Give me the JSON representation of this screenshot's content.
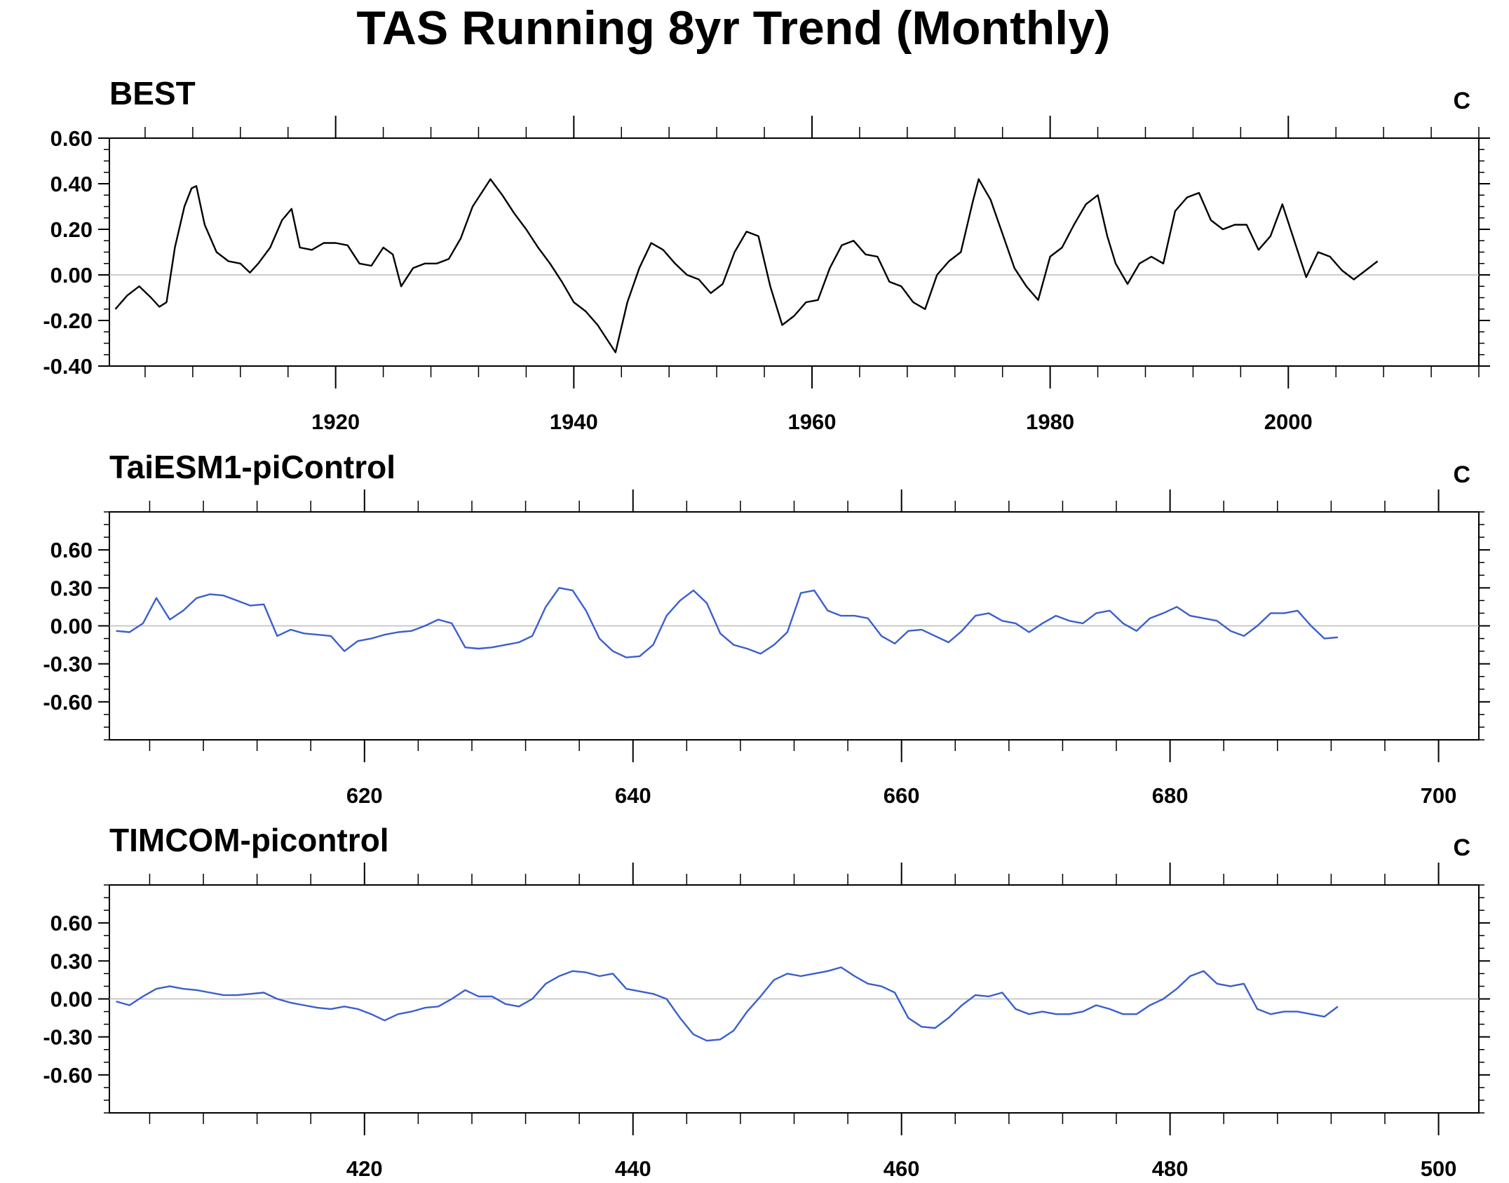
{
  "title": "TAS Running 8yr Trend (Monthly)",
  "chart_data": [
    {
      "type": "line",
      "panel_title": "BEST",
      "units": "C",
      "xlim": [
        1901,
        2016
      ],
      "ylim": [
        -0.4,
        0.6
      ],
      "xticks": [
        1920,
        1940,
        1960,
        1980,
        2000
      ],
      "yticks": [
        -0.4,
        -0.2,
        0.0,
        0.2,
        0.4,
        0.6
      ],
      "ytick_labels": [
        "-0.40",
        "-0.20",
        "0.00",
        "0.20",
        "0.40",
        "0.60"
      ],
      "zero_line": true,
      "series": [
        {
          "color": "#000000",
          "x": [
            1901.5,
            1902.5,
            1903.5,
            1904.5,
            1905.2,
            1905.8,
            1906.5,
            1907.3,
            1907.9,
            1908.3,
            1909.0,
            1910.0,
            1911.0,
            1912.0,
            1912.8,
            1913.5,
            1914.5,
            1915.5,
            1916.3,
            1917.0,
            1918.0,
            1919.0,
            1920.0,
            1921.0,
            1922.0,
            1923.0,
            1924.0,
            1924.8,
            1925.5,
            1926.5,
            1927.5,
            1928.5,
            1929.5,
            1930.5,
            1931.5,
            1932.5,
            1933.0,
            1934.0,
            1935.0,
            1936.0,
            1937.0,
            1938.0,
            1939.0,
            1940.0,
            1941.0,
            1942.0,
            1943.0,
            1943.5,
            1944.5,
            1945.5,
            1946.5,
            1947.5,
            1948.5,
            1949.5,
            1950.5,
            1951.5,
            1952.5,
            1953.5,
            1954.5,
            1955.5,
            1956.5,
            1957.5,
            1958.5,
            1959.5,
            1960.5,
            1961.5,
            1962.5,
            1963.5,
            1964.5,
            1965.5,
            1966.5,
            1967.5,
            1968.5,
            1969.5,
            1970.5,
            1971.5,
            1972.5,
            1973.5,
            1974.0,
            1975.0,
            1976.0,
            1977.0,
            1978.0,
            1979.0,
            1980.0,
            1981.0,
            1982.0,
            1983.0,
            1984.0,
            1984.8,
            1985.5,
            1986.5,
            1987.5,
            1988.5,
            1989.5,
            1990.5,
            1991.5,
            1992.5,
            1993.5,
            1994.5,
            1995.5,
            1996.5,
            1997.5,
            1998.5,
            1999.5,
            2000.5,
            2001.5,
            2002.5,
            2003.5,
            2004.5,
            2005.5,
            2006.5,
            2007.5
          ],
          "y": [
            -0.15,
            -0.09,
            -0.05,
            -0.1,
            -0.14,
            -0.12,
            0.12,
            0.3,
            0.38,
            0.39,
            0.22,
            0.1,
            0.06,
            0.05,
            0.01,
            0.05,
            0.12,
            0.24,
            0.29,
            0.12,
            0.11,
            0.14,
            0.14,
            0.13,
            0.05,
            0.04,
            0.12,
            0.09,
            -0.05,
            0.03,
            0.05,
            0.05,
            0.07,
            0.16,
            0.3,
            0.38,
            0.42,
            0.35,
            0.27,
            0.2,
            0.12,
            0.05,
            -0.03,
            -0.12,
            -0.16,
            -0.22,
            -0.3,
            -0.34,
            -0.12,
            0.03,
            0.14,
            0.11,
            0.05,
            0.0,
            -0.02,
            -0.08,
            -0.04,
            0.1,
            0.19,
            0.17,
            -0.05,
            -0.22,
            -0.18,
            -0.12,
            -0.11,
            0.03,
            0.13,
            0.15,
            0.09,
            0.08,
            -0.03,
            -0.05,
            -0.12,
            -0.15,
            0.0,
            0.06,
            0.1,
            0.32,
            0.42,
            0.33,
            0.18,
            0.03,
            -0.05,
            -0.11,
            0.08,
            0.12,
            0.22,
            0.31,
            0.35,
            0.17,
            0.05,
            -0.04,
            0.05,
            0.08,
            0.05,
            0.28,
            0.34,
            0.36,
            0.24,
            0.2,
            0.22,
            0.22,
            0.11,
            0.17,
            0.31,
            0.15,
            -0.01,
            0.1,
            0.08,
            0.02,
            -0.02,
            0.02,
            0.06
          ]
        }
      ]
    },
    {
      "type": "line",
      "panel_title": "TaiESM1-piControl",
      "units": "C",
      "xlim": [
        601,
        703
      ],
      "ylim": [
        -0.9,
        0.9
      ],
      "xticks": [
        620,
        640,
        660,
        680,
        700
      ],
      "yticks": [
        -0.6,
        -0.3,
        0.0,
        0.3,
        0.6
      ],
      "ytick_labels": [
        "-0.60",
        "-0.30",
        "0.00",
        "0.30",
        "0.60"
      ],
      "zero_line": true,
      "series": [
        {
          "color": "#3a5fcd",
          "x": [
            601.5,
            602.5,
            603.5,
            604.5,
            605.5,
            606.5,
            607.5,
            608.5,
            609.5,
            610.5,
            611.5,
            612.5,
            613.5,
            614.5,
            615.5,
            616.5,
            617.5,
            618.5,
            619.5,
            620.5,
            621.5,
            622.5,
            623.5,
            624.5,
            625.5,
            626.5,
            627.5,
            628.5,
            629.5,
            630.5,
            631.5,
            632.5,
            633.5,
            634.5,
            635.5,
            636.5,
            637.5,
            638.5,
            639.5,
            640.5,
            641.5,
            642.5,
            643.5,
            644.5,
            645.5,
            646.5,
            647.5,
            648.5,
            649.5,
            650.5,
            651.5,
            652.5,
            653.5,
            654.5,
            655.5,
            656.5,
            657.5,
            658.5,
            659.5,
            660.5,
            661.5,
            662.5,
            663.5,
            664.5,
            665.5,
            666.5,
            667.5,
            668.5,
            669.5,
            670.5,
            671.5,
            672.5,
            673.5,
            674.5,
            675.5,
            676.5,
            677.5,
            678.5,
            679.5,
            680.5,
            681.5,
            682.5,
            683.5,
            684.5,
            685.5,
            686.5,
            687.5,
            688.5,
            689.5,
            690.5,
            691.5,
            692.5
          ],
          "y": [
            -0.04,
            -0.05,
            0.02,
            0.22,
            0.05,
            0.12,
            0.22,
            0.25,
            0.24,
            0.2,
            0.16,
            0.17,
            -0.08,
            -0.03,
            -0.06,
            -0.07,
            -0.08,
            -0.2,
            -0.12,
            -0.1,
            -0.07,
            -0.05,
            -0.04,
            0.0,
            0.05,
            0.02,
            -0.17,
            -0.18,
            -0.17,
            -0.15,
            -0.13,
            -0.08,
            0.15,
            0.3,
            0.28,
            0.12,
            -0.1,
            -0.2,
            -0.25,
            -0.24,
            -0.15,
            0.08,
            0.2,
            0.28,
            0.18,
            -0.06,
            -0.15,
            -0.18,
            -0.22,
            -0.15,
            -0.05,
            0.26,
            0.28,
            0.12,
            0.08,
            0.08,
            0.06,
            -0.08,
            -0.14,
            -0.04,
            -0.03,
            -0.08,
            -0.13,
            -0.04,
            0.08,
            0.1,
            0.04,
            0.02,
            -0.05,
            0.02,
            0.08,
            0.04,
            0.02,
            0.1,
            0.12,
            0.02,
            -0.04,
            0.06,
            0.1,
            0.15,
            0.08,
            0.06,
            0.04,
            -0.04,
            -0.08,
            0.0,
            0.1,
            0.1,
            0.12,
            0.0,
            -0.1,
            -0.09
          ]
        }
      ]
    },
    {
      "type": "line",
      "panel_title": "TIMCOM-picontrol",
      "units": "C",
      "xlim": [
        401,
        503
      ],
      "ylim": [
        -0.9,
        0.9
      ],
      "xticks": [
        420,
        440,
        460,
        480,
        500
      ],
      "yticks": [
        -0.6,
        -0.3,
        0.0,
        0.3,
        0.6
      ],
      "ytick_labels": [
        "-0.60",
        "-0.30",
        "0.00",
        "0.30",
        "0.60"
      ],
      "zero_line": true,
      "series": [
        {
          "color": "#3a5fcd",
          "x": [
            401.5,
            402.5,
            403.5,
            404.5,
            405.5,
            406.5,
            407.5,
            408.5,
            409.5,
            410.5,
            411.5,
            412.5,
            413.5,
            414.5,
            415.5,
            416.5,
            417.5,
            418.5,
            419.5,
            420.5,
            421.5,
            422.5,
            423.5,
            424.5,
            425.5,
            426.5,
            427.5,
            428.5,
            429.5,
            430.5,
            431.5,
            432.5,
            433.5,
            434.5,
            435.5,
            436.5,
            437.5,
            438.5,
            439.5,
            440.5,
            441.5,
            442.5,
            443.5,
            444.5,
            445.5,
            446.5,
            447.5,
            448.5,
            449.5,
            450.5,
            451.5,
            452.5,
            453.5,
            454.5,
            455.5,
            456.5,
            457.5,
            458.5,
            459.5,
            460.5,
            461.5,
            462.5,
            463.5,
            464.5,
            465.5,
            466.5,
            467.5,
            468.5,
            469.5,
            470.5,
            471.5,
            472.5,
            473.5,
            474.5,
            475.5,
            476.5,
            477.5,
            478.5,
            479.5,
            480.5,
            481.5,
            482.5,
            483.5,
            484.5,
            485.5,
            486.5,
            487.5,
            488.5,
            489.5,
            490.5,
            491.5,
            492.5
          ],
          "y": [
            -0.02,
            -0.05,
            0.02,
            0.08,
            0.1,
            0.08,
            0.07,
            0.05,
            0.03,
            0.03,
            0.04,
            0.05,
            0.0,
            -0.03,
            -0.05,
            -0.07,
            -0.08,
            -0.06,
            -0.08,
            -0.12,
            -0.17,
            -0.12,
            -0.1,
            -0.07,
            -0.06,
            0.0,
            0.07,
            0.02,
            0.02,
            -0.04,
            -0.06,
            0.0,
            0.12,
            0.18,
            0.22,
            0.21,
            0.18,
            0.2,
            0.08,
            0.06,
            0.04,
            0.0,
            -0.15,
            -0.28,
            -0.33,
            -0.32,
            -0.25,
            -0.1,
            0.02,
            0.15,
            0.2,
            0.18,
            0.2,
            0.22,
            0.25,
            0.18,
            0.12,
            0.1,
            0.05,
            -0.15,
            -0.22,
            -0.23,
            -0.15,
            -0.05,
            0.03,
            0.02,
            0.05,
            -0.08,
            -0.12,
            -0.1,
            -0.12,
            -0.12,
            -0.1,
            -0.05,
            -0.08,
            -0.12,
            -0.12,
            -0.05,
            0.0,
            0.08,
            0.18,
            0.22,
            0.12,
            0.1,
            0.12,
            -0.08,
            -0.12,
            -0.1,
            -0.1,
            -0.12,
            -0.14,
            -0.06
          ]
        }
      ]
    }
  ]
}
